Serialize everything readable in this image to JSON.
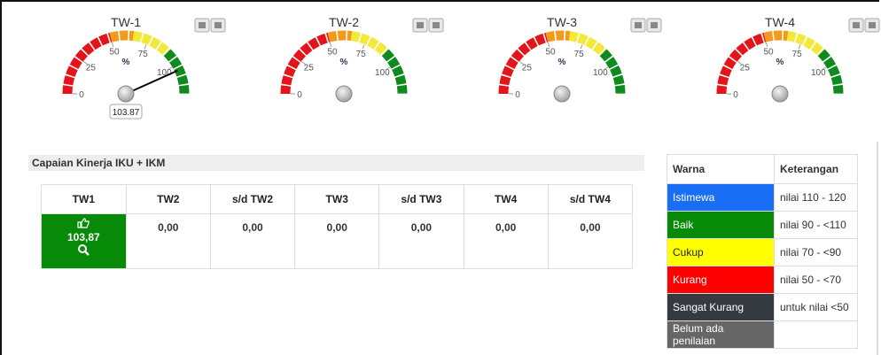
{
  "gauges": [
    {
      "title": "TW-1",
      "value": 103.87
    },
    {
      "title": "TW-2",
      "value": null
    },
    {
      "title": "TW-3",
      "value": null
    },
    {
      "title": "TW-4",
      "value": null
    }
  ],
  "gauge_scale": {
    "range": [
      0,
      120
    ],
    "ticks": [
      0,
      25,
      50,
      75,
      100
    ],
    "unit": "%",
    "bands": [
      {
        "from": 0,
        "to": 50,
        "color": "#e5141a"
      },
      {
        "from": 50,
        "to": 65,
        "color": "#f39a1c"
      },
      {
        "from": 65,
        "to": 90,
        "color": "#f2e93a"
      },
      {
        "from": 90,
        "to": 120,
        "color": "#0f8a1e"
      }
    ]
  },
  "section_title": "Capaian Kinerja IKU + IKM",
  "table": {
    "headers": [
      "TW1",
      "TW2",
      "s/d TW2",
      "TW3",
      "s/d TW3",
      "TW4",
      "s/d TW4"
    ],
    "rows": [
      [
        "103,87",
        "0,00",
        "0,00",
        "0,00",
        "0,00",
        "0,00",
        "0,00"
      ]
    ],
    "highlight_color": "#078a07"
  },
  "legend": {
    "headers": [
      "Warna",
      "Keterangan"
    ],
    "rows": [
      {
        "label": "Istimewa",
        "range": "nilai 110 - 120",
        "color": "#1a6ef5",
        "text_color": "#ffffff"
      },
      {
        "label": "Baik",
        "range": "nilai 90 - <110",
        "color": "#078a07",
        "text_color": "#ffffff"
      },
      {
        "label": "Cukup",
        "range": "nilai 70 - <90",
        "color": "#ffff00",
        "text_color": "#222222"
      },
      {
        "label": "Kurang",
        "range": "nilai 50 - <70",
        "color": "#ff0000",
        "text_color": "#ffffff"
      },
      {
        "label": "Sangat Kurang",
        "range": "untuk nilai <50",
        "color": "#343a40",
        "text_color": "#ffffff"
      },
      {
        "label": "Belum ada penilaian",
        "color": "#666666",
        "text_color": "#ffffff"
      }
    ]
  }
}
